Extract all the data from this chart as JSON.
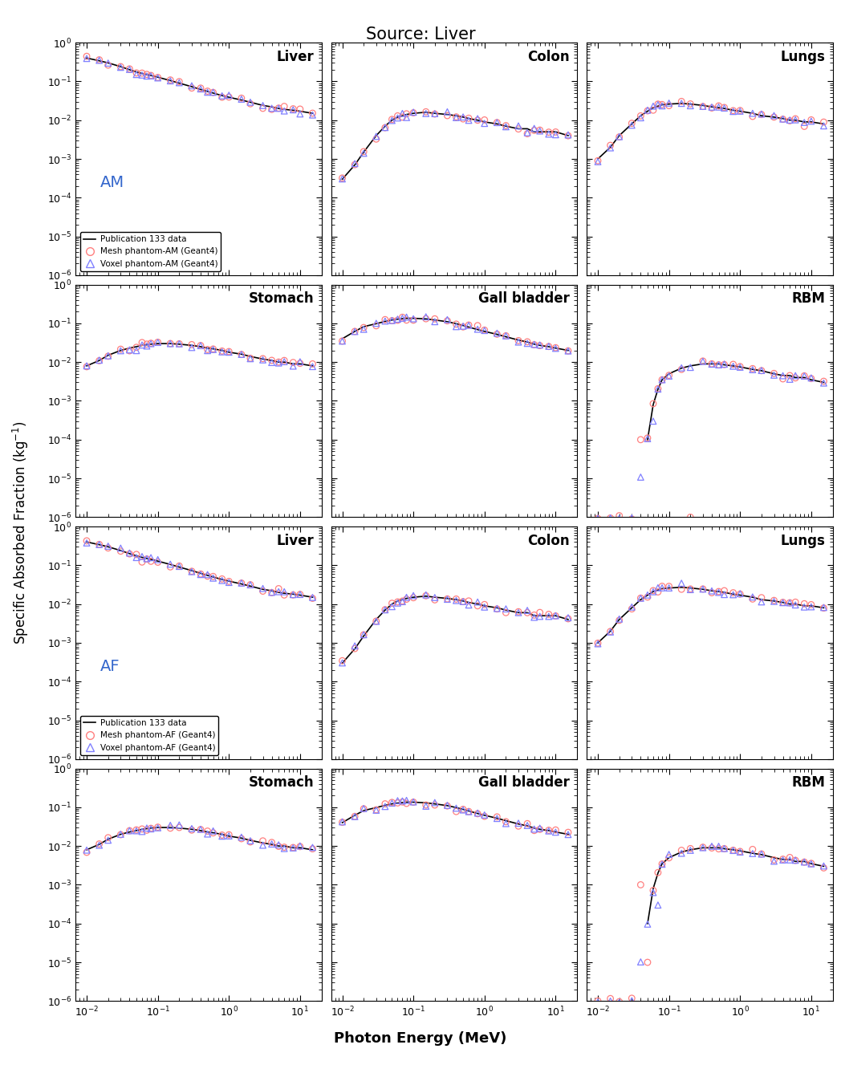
{
  "title": "Source: Liver",
  "xlabel": "Photon Energy (MeV)",
  "ylabel": "Specific Absorbed Fraction (kg$^{-1}$)",
  "ylim_low": 1e-06,
  "ylim_high": 1.0,
  "xlim_low": 0.007,
  "xlim_high": 20.0,
  "color_circle": "#FF8080",
  "color_triangle": "#8080FF",
  "color_line": "#000000",
  "subplot_titles": [
    [
      "Liver",
      "Colon",
      "Lungs"
    ],
    [
      "Stomach",
      "Gall bladder",
      "RBM"
    ],
    [
      "Liver",
      "Colon",
      "Lungs"
    ],
    [
      "Stomach",
      "Gall bladder",
      "RBM"
    ]
  ],
  "phantom_labels": [
    "AM",
    "AM",
    "AF",
    "AF"
  ],
  "legend_rows": [
    0,
    2
  ],
  "energies": [
    0.01,
    0.015,
    0.02,
    0.03,
    0.04,
    0.05,
    0.06,
    0.07,
    0.08,
    0.1,
    0.15,
    0.2,
    0.3,
    0.4,
    0.5,
    0.6,
    0.8,
    1.0,
    1.5,
    2.0,
    3.0,
    4.0,
    5.0,
    6.0,
    8.0,
    10.0,
    15.0
  ],
  "pub_liver": [
    0.4,
    0.34,
    0.3,
    0.24,
    0.2,
    0.175,
    0.16,
    0.15,
    0.142,
    0.128,
    0.105,
    0.09,
    0.073,
    0.062,
    0.055,
    0.05,
    0.043,
    0.039,
    0.033,
    0.029,
    0.024,
    0.022,
    0.02,
    0.019,
    0.018,
    0.017,
    0.015
  ],
  "pub_colon": [
    0.0003,
    0.0007,
    0.0015,
    0.004,
    0.007,
    0.01,
    0.012,
    0.013,
    0.014,
    0.015,
    0.016,
    0.015,
    0.014,
    0.013,
    0.012,
    0.011,
    0.01,
    0.009,
    0.008,
    0.007,
    0.006,
    0.006,
    0.005,
    0.005,
    0.005,
    0.005,
    0.004
  ],
  "pub_lungs": [
    0.001,
    0.002,
    0.004,
    0.008,
    0.013,
    0.017,
    0.021,
    0.023,
    0.025,
    0.026,
    0.027,
    0.026,
    0.024,
    0.022,
    0.021,
    0.02,
    0.018,
    0.017,
    0.015,
    0.013,
    0.012,
    0.011,
    0.01,
    0.01,
    0.009,
    0.009,
    0.008
  ],
  "pub_stomach": [
    0.008,
    0.011,
    0.015,
    0.02,
    0.023,
    0.025,
    0.027,
    0.028,
    0.029,
    0.03,
    0.03,
    0.029,
    0.027,
    0.025,
    0.023,
    0.022,
    0.02,
    0.018,
    0.016,
    0.014,
    0.012,
    0.011,
    0.01,
    0.01,
    0.009,
    0.009,
    0.008
  ],
  "pub_gallbladder": [
    0.04,
    0.062,
    0.082,
    0.098,
    0.112,
    0.122,
    0.128,
    0.132,
    0.135,
    0.135,
    0.13,
    0.122,
    0.11,
    0.098,
    0.088,
    0.08,
    0.069,
    0.062,
    0.052,
    0.045,
    0.037,
    0.033,
    0.029,
    0.027,
    0.025,
    0.023,
    0.02
  ],
  "pub_rbm": [
    1e-06,
    1e-06,
    1e-06,
    1e-06,
    1e-05,
    0.0001,
    0.0008,
    0.002,
    0.0035,
    0.005,
    0.007,
    0.008,
    0.009,
    0.009,
    0.009,
    0.0085,
    0.008,
    0.0075,
    0.0065,
    0.006,
    0.005,
    0.0045,
    0.0045,
    0.004,
    0.004,
    0.0035,
    0.003
  ],
  "noise_seeds_mesh": [
    10,
    20,
    30,
    40,
    50,
    60,
    70,
    80,
    90,
    100,
    110,
    120
  ],
  "noise_seeds_voxel": [
    15,
    25,
    35,
    45,
    55,
    65,
    75,
    85,
    95,
    105,
    115,
    125
  ],
  "noise_scale": 0.08,
  "marker_size": 30,
  "marker_lw": 0.9
}
